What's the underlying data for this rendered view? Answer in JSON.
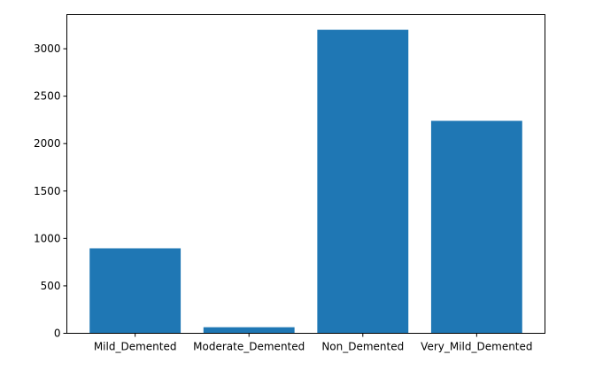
{
  "chart_data": {
    "type": "bar",
    "title": "",
    "xlabel": "",
    "ylabel": "",
    "categories": [
      "Mild_Demented",
      "Moderate_Demented",
      "Non_Demented",
      "Very_Mild_Demented"
    ],
    "values": [
      896,
      64,
      3200,
      2240
    ],
    "ylim": [
      0,
      3360
    ],
    "yticks": [
      0,
      500,
      1000,
      1500,
      2000,
      2500,
      3000
    ],
    "ytick_labels": [
      "0",
      "500",
      "1000",
      "1500",
      "2000",
      "2500",
      "3000"
    ],
    "bar_color": "#1f77b4",
    "grid": false,
    "legend": "none"
  }
}
